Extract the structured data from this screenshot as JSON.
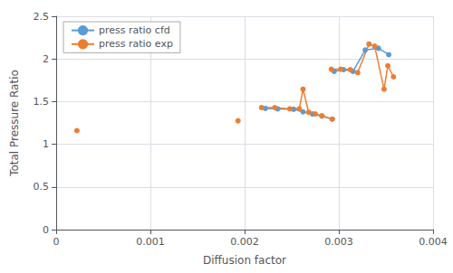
{
  "chart_data": {
    "type": "line",
    "xlabel": "Diffusion factor",
    "ylabel": "Total Pressure Ratio",
    "marker": "circle",
    "series": [
      {
        "name": "press ratio cfd",
        "color": "#5b9bd5",
        "x": [
          0.00222,
          0.00235,
          0.00252,
          0.00262,
          0.00272,
          0.00282,
          0.00293,
          null,
          0.00295,
          0.00305,
          0.00315,
          0.00328,
          0.00342,
          0.00353
        ],
        "values": [
          1.42,
          1.415,
          1.41,
          1.38,
          1.355,
          1.33,
          1.295,
          null,
          1.855,
          1.875,
          1.855,
          2.105,
          2.125,
          2.05
        ]
      },
      {
        "name": "press ratio exp",
        "color": "#ed7d31",
        "x": [
          0.00022,
          null,
          0.00193,
          null,
          0.00218,
          0.00232,
          0.00248,
          0.00258,
          0.00262,
          0.00268,
          0.00275,
          0.00282,
          0.00293,
          null,
          0.00292,
          0.00302,
          0.00312,
          0.0032,
          0.00332,
          0.00338,
          0.00348,
          0.00352,
          0.00358
        ],
        "values": [
          1.16,
          null,
          1.275,
          null,
          1.43,
          1.43,
          1.415,
          1.415,
          1.645,
          1.375,
          1.355,
          1.335,
          1.295,
          null,
          1.88,
          1.88,
          1.875,
          1.84,
          2.175,
          2.15,
          1.645,
          1.92,
          1.79
        ]
      }
    ],
    "xlim": [
      0,
      0.004
    ],
    "ylim": [
      0,
      2.5
    ],
    "xticks": [
      0,
      0.001,
      0.002,
      0.003,
      0.004
    ],
    "yticks": [
      0,
      0.5,
      1.0,
      1.5,
      2.0,
      2.5
    ],
    "grid": true,
    "legend": "upper left"
  }
}
